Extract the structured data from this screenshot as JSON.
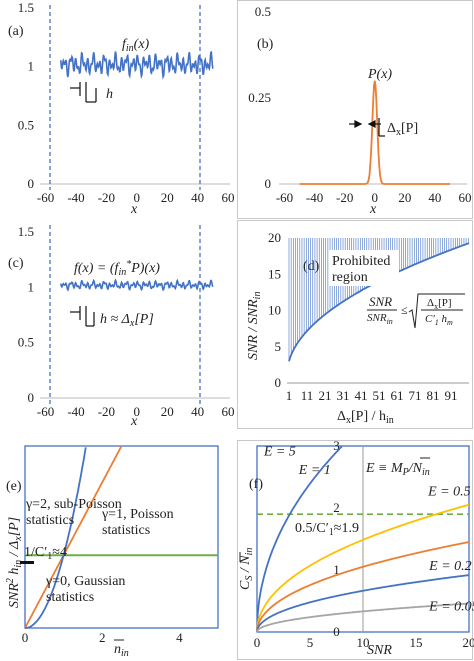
{
  "panels": {
    "a": {
      "tag": "(a)",
      "curve": "f",
      "curve_sub": "in",
      "curve_tail": "(x)",
      "pitch": "h",
      "xlabel": "x"
    },
    "b": {
      "tag": "(b)",
      "curve": "P(x)",
      "width_sym": "Δ",
      "width_sub": "x",
      "width_tail": "[P]",
      "xlabel": "x"
    },
    "c": {
      "tag": "(c)",
      "eq": "f(x) = (f",
      "eq_sub": "in",
      "eq_sup": "*",
      "eq_tail": "P)(x)",
      "pitch": "h ≈ Δ",
      "pitch_sub": "x",
      "pitch_tail": "[P]",
      "xlabel": "x"
    },
    "d": {
      "tag": "(d)",
      "region": [
        "Prohibited",
        "region"
      ],
      "frac_num_a": "SNR",
      "frac_den_a": "SNR",
      "frac_den_a_sub": "in",
      "rel": "≤",
      "frac_num_b": "Δ",
      "frac_num_b_sub": "x",
      "frac_num_b_tail": "[P]",
      "frac_den_b": "C′",
      "frac_den_b_sub": "1",
      "frac_den_b_tail": " h",
      "frac_den_b_tail_sub": "m",
      "ylabel": "SNR / SNR",
      "ylabel_sub": "in",
      "xlabel": "Δ",
      "xlabel_sub": "x",
      "xlabel_tail": "[P] / h",
      "xlabel_tail_sub": "in"
    },
    "e": {
      "tag": "(e)",
      "ann": [
        [
          "γ=2, sub-Poisson",
          "statistics"
        ],
        [
          "γ=1, Poisson",
          "statistics"
        ],
        [
          "γ=0, Gaussian",
          "statistics"
        ]
      ],
      "mark": "1/C′",
      "mark_sub": "1",
      "mark_tail": "≈4",
      "ylabel": "SNR",
      "ylabel_sup": "2",
      "ylabel_mid": " h",
      "ylabel_mid_sub": "in",
      "ylabel_tail": " / Δ",
      "ylabel_tail_sub": "x",
      "ylabel_end": "[P]",
      "xlabel": "n",
      "xlabel_sub": "in"
    },
    "f": {
      "tag": "(f)",
      "eq": "E ≡ M",
      "eq_sub": "P",
      "eq_tail": "/N",
      "eq_tail_sub": "in",
      "ref": "0.5/C′",
      "ref_sub": "1",
      "ref_tail": "≈1.9",
      "ylabel": "C",
      "ylabel_sub": "S",
      "ylabel_tail": " / N",
      "ylabel_tail_sub": "in",
      "xlabel": "SNR"
    }
  },
  "chart_data": [
    {
      "panel": "a",
      "type": "line",
      "series": [
        {
          "name": "f_in(x)",
          "values_note": "oscillating signal around 1"
        }
      ],
      "xlim": [
        -65,
        60
      ],
      "ylim": [
        0,
        1.5
      ],
      "xticks": [
        "-60",
        "-40",
        "-20",
        "0",
        "20",
        "40",
        "60"
      ],
      "yticks": [
        "0",
        "0.5",
        "1",
        "1.5"
      ],
      "vlines": [
        -50,
        50
      ],
      "color": "#4472C4"
    },
    {
      "panel": "b",
      "type": "line",
      "series": [
        {
          "name": "P(x)",
          "peak": 0.3,
          "center": 0
        }
      ],
      "xlim": [
        -65,
        60
      ],
      "ylim": [
        0,
        0.5
      ],
      "xticks": [
        "-60",
        "-40",
        "-20",
        "0",
        "20",
        "40",
        "60"
      ],
      "yticks": [
        "0",
        "0.25",
        "0.5"
      ],
      "color": "#ED7D31"
    },
    {
      "panel": "c",
      "type": "line",
      "series": [
        {
          "name": "f(x)",
          "values_note": "smoothed signal around 1"
        }
      ],
      "xlim": [
        -65,
        60
      ],
      "ylim": [
        0,
        1.5
      ],
      "xticks": [
        "-60",
        "-40",
        "-20",
        "0",
        "20",
        "40",
        "60"
      ],
      "yticks": [
        "0",
        "0.5",
        "1",
        "1.5"
      ],
      "vlines": [
        -50,
        50
      ],
      "color": "#4472C4"
    },
    {
      "panel": "d",
      "type": "area",
      "x": [
        1,
        101
      ],
      "ylim": [
        0,
        20
      ],
      "xticks": [
        "1",
        "11",
        "21",
        "31",
        "41",
        "51",
        "61",
        "71",
        "81",
        "91"
      ],
      "yticks": [
        "0",
        "5",
        "10",
        "15",
        "20"
      ],
      "series": [
        {
          "name": "bound",
          "formula": "2*sqrt(x)"
        }
      ],
      "color": "#4472C4"
    },
    {
      "panel": "e",
      "type": "line",
      "xlim": [
        0,
        5
      ],
      "ylim": [
        0,
        10
      ],
      "xticks": [
        "0",
        "2",
        "4"
      ],
      "yticks": [],
      "series": [
        {
          "name": "γ=2",
          "exp": 2
        },
        {
          "name": "γ=1",
          "exp": 1
        },
        {
          "name": "γ=0",
          "exp": 0
        }
      ],
      "hline": 4,
      "colors": [
        "#4472C4",
        "#ED7D31",
        "#70AD47"
      ]
    },
    {
      "panel": "f",
      "type": "line",
      "xlim": [
        0,
        20
      ],
      "ylim": [
        0,
        3
      ],
      "xticks": [
        "0",
        "5",
        "10",
        "15",
        "20"
      ],
      "yticks": [
        "0",
        "1",
        "2",
        "3"
      ],
      "series": [
        {
          "name": "E = 5",
          "E": 5
        },
        {
          "name": "E = 1",
          "E": 1
        },
        {
          "name": "E = 0.5",
          "E": 0.5
        },
        {
          "name": "E = 0.2",
          "E": 0.2
        },
        {
          "name": "E = 0.05",
          "E": 0.05
        }
      ],
      "hline": 1.9,
      "vline": 10,
      "colors": [
        "#4472C4",
        "#FFC000",
        "#ED7D31",
        "#4472C4",
        "#A5A5A5"
      ]
    }
  ]
}
